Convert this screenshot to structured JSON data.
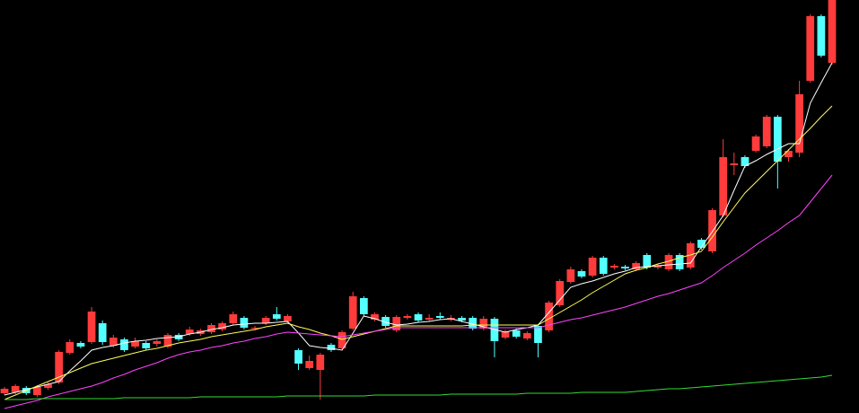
{
  "chart_data": {
    "type": "candlestick",
    "ylim": [
      0,
      46
    ],
    "up_color": "#ff3b3b",
    "down_color": "#54ffff",
    "open": [
      2.2,
      2.3,
      2.8,
      2.0,
      2.8,
      3.4,
      6.7,
      7.8,
      7.9,
      10.0,
      7.5,
      8.2,
      7.4,
      7.8,
      7.7,
      7.4,
      8.7,
      8.8,
      8.8,
      9.0,
      9.3,
      10.0,
      10.6,
      9.4,
      10.0,
      11.0,
      10.2,
      7.0,
      5.0,
      4.8,
      7.6,
      7.2,
      9.4,
      12.8,
      10.4,
      10.7,
      9.2,
      10.6,
      11.0,
      10.4,
      10.8,
      10.4,
      10.6,
      10.6,
      9.4,
      10.5,
      8.4,
      9.2,
      8.3,
      9.7,
      9.2,
      12.0,
      14.6,
      15.8,
      15.3,
      17.3,
      16.2,
      16.3,
      16.0,
      17.6,
      16.2,
      16.0,
      17.6,
      16.2,
      19.3,
      18.0,
      22.0,
      27.6,
      28.5,
      29.2,
      29.7,
      33.0,
      28.5,
      29.0,
      37.0,
      44.2,
      39.0
    ],
    "high": [
      2.9,
      3.2,
      3.0,
      3.1,
      3.4,
      7.0,
      8.2,
      8.0,
      11.8,
      10.3,
      8.7,
      8.4,
      8.4,
      8.0,
      8.2,
      8.9,
      8.9,
      9.6,
      9.4,
      10.0,
      10.2,
      11.3,
      10.8,
      9.7,
      10.8,
      11.8,
      11.0,
      7.2,
      6.4,
      6.7,
      7.8,
      9.2,
      13.5,
      13.0,
      11.2,
      10.9,
      10.9,
      11.0,
      11.2,
      11.0,
      11.2,
      10.9,
      10.8,
      10.8,
      10.8,
      10.7,
      9.3,
      9.4,
      9.1,
      9.9,
      12.5,
      14.9,
      16.3,
      16.0,
      17.5,
      17.5,
      16.6,
      16.5,
      16.9,
      17.8,
      16.6,
      17.8,
      17.8,
      19.1,
      19.5,
      22.8,
      30.5,
      29.0,
      28.7,
      31.0,
      33.2,
      33.2,
      29.4,
      37.0,
      44.4,
      44.4,
      46.0
    ],
    "low": [
      2.0,
      2.1,
      2.0,
      1.8,
      2.6,
      3.2,
      6.5,
      7.2,
      7.7,
      7.6,
      7.3,
      6.8,
      7.2,
      7.0,
      7.4,
      7.2,
      8.0,
      8.6,
      8.6,
      8.8,
      9.1,
      9.8,
      9.3,
      9.2,
      9.8,
      10.3,
      10.0,
      4.8,
      4.8,
      1.5,
      6.8,
      7.0,
      9.2,
      10.8,
      10.2,
      9.5,
      9.0,
      10.4,
      10.1,
      10.2,
      10.4,
      10.2,
      10.1,
      9.2,
      9.2,
      6.2,
      8.2,
      8.3,
      8.1,
      6.2,
      9.0,
      11.8,
      14.4,
      15.0,
      15.1,
      15.3,
      16.0,
      15.9,
      15.8,
      16.0,
      16.0,
      15.8,
      15.8,
      16.0,
      18.2,
      17.8,
      21.8,
      26.5,
      27.3,
      29.0,
      29.5,
      25.0,
      28.0,
      28.5,
      36.8,
      39.6,
      38.8
    ],
    "close": [
      2.7,
      3.0,
      2.2,
      2.9,
      3.2,
      6.8,
      7.9,
      7.4,
      11.3,
      7.9,
      8.4,
      7.0,
      8.0,
      7.2,
      8.0,
      8.7,
      8.2,
      9.3,
      9.2,
      9.8,
      10.0,
      11.0,
      9.5,
      9.5,
      10.6,
      10.5,
      10.8,
      5.5,
      5.8,
      6.5,
      7.0,
      9.0,
      13.0,
      11.0,
      11.0,
      9.7,
      10.7,
      10.8,
      10.3,
      10.6,
      10.6,
      10.6,
      10.3,
      9.4,
      10.5,
      8.0,
      9.1,
      8.5,
      8.9,
      7.8,
      12.3,
      14.7,
      16.0,
      15.2,
      17.3,
      15.5,
      16.4,
      16.1,
      16.7,
      16.2,
      16.4,
      17.6,
      16.0,
      18.9,
      18.4,
      22.6,
      28.5,
      27.8,
      27.5,
      30.8,
      33.0,
      28.0,
      29.2,
      35.5,
      44.2,
      39.8,
      46.0
    ],
    "series": [
      {
        "color": "#ffffff",
        "values": [
          2.0,
          2.3,
          2.6,
          2.9,
          3.2,
          3.5,
          4.7,
          5.8,
          7.0,
          7.3,
          7.5,
          7.8,
          8.0,
          8.1,
          8.3,
          8.4,
          8.5,
          8.8,
          9.0,
          9.3,
          9.5,
          9.8,
          9.9,
          10.0,
          10.0,
          10.1,
          10.2,
          8.9,
          7.5,
          7.3,
          7.2,
          7.0,
          8.9,
          10.8,
          10.5,
          10.1,
          9.8,
          9.9,
          10.1,
          10.2,
          10.4,
          10.5,
          10.2,
          9.9,
          9.6,
          9.3,
          9.0,
          9.3,
          9.5,
          9.8,
          11.2,
          12.6,
          14.0,
          14.4,
          14.7,
          15.1,
          15.5,
          15.8,
          16.2,
          16.3,
          16.4,
          16.5,
          16.6,
          16.7,
          18.5,
          20.2,
          22.0,
          24.8,
          27.5,
          28.1,
          28.8,
          29.4,
          30.0,
          30.0,
          34.5,
          36.8,
          39.0
        ]
      },
      {
        "color": "#ffff55",
        "values": [
          1.5,
          2.0,
          2.5,
          3.0,
          3.5,
          4.0,
          4.5,
          5.0,
          5.5,
          5.8,
          6.1,
          6.4,
          6.7,
          7.0,
          7.2,
          7.5,
          7.8,
          8.0,
          8.2,
          8.5,
          8.7,
          8.9,
          9.1,
          9.3,
          9.6,
          9.8,
          10.0,
          9.6,
          9.3,
          8.9,
          8.6,
          8.2,
          8.5,
          8.8,
          9.1,
          9.4,
          9.7,
          9.7,
          9.7,
          9.7,
          9.7,
          9.7,
          9.7,
          9.8,
          9.8,
          9.8,
          9.8,
          9.8,
          9.8,
          9.8,
          10.5,
          11.2,
          11.9,
          12.6,
          13.4,
          14.1,
          14.8,
          15.5,
          15.9,
          16.2,
          16.6,
          16.9,
          17.3,
          17.6,
          18.0,
          19.6,
          21.3,
          22.9,
          24.5,
          25.7,
          26.9,
          28.1,
          29.3,
          30.5,
          31.7,
          33.0,
          34.2
        ]
      },
      {
        "color": "#ff44ff",
        "values": [
          0.5,
          0.8,
          1.1,
          1.4,
          1.8,
          2.1,
          2.4,
          2.7,
          3.0,
          3.4,
          3.9,
          4.3,
          4.8,
          5.2,
          5.6,
          6.1,
          6.5,
          6.8,
          7.0,
          7.3,
          7.5,
          7.8,
          8.0,
          8.3,
          8.5,
          8.8,
          9.0,
          8.9,
          8.8,
          8.7,
          8.6,
          8.5,
          8.7,
          8.9,
          9.1,
          9.3,
          9.5,
          9.5,
          9.5,
          9.5,
          9.5,
          9.5,
          9.5,
          9.5,
          9.5,
          9.5,
          9.5,
          9.5,
          9.5,
          9.5,
          9.8,
          10.1,
          10.4,
          10.6,
          10.9,
          11.2,
          11.5,
          11.8,
          12.2,
          12.6,
          13.0,
          13.3,
          13.7,
          14.1,
          14.5,
          15.3,
          16.2,
          17.0,
          17.8,
          18.7,
          19.5,
          20.3,
          21.2,
          22.0,
          23.5,
          25.0,
          26.5
        ]
      },
      {
        "color": "#33dd33",
        "values": [
          1.5,
          1.5,
          1.5,
          1.6,
          1.6,
          1.6,
          1.6,
          1.6,
          1.6,
          1.6,
          1.6,
          1.7,
          1.7,
          1.7,
          1.7,
          1.7,
          1.7,
          1.7,
          1.8,
          1.8,
          1.8,
          1.8,
          1.8,
          1.8,
          1.8,
          1.8,
          1.9,
          1.9,
          1.9,
          1.9,
          1.9,
          1.9,
          1.9,
          1.9,
          2.0,
          2.0,
          2.0,
          2.0,
          2.0,
          2.0,
          2.0,
          2.1,
          2.1,
          2.1,
          2.1,
          2.1,
          2.1,
          2.1,
          2.2,
          2.2,
          2.2,
          2.2,
          2.2,
          2.3,
          2.3,
          2.3,
          2.3,
          2.3,
          2.4,
          2.5,
          2.6,
          2.7,
          2.7,
          2.8,
          2.9,
          3.0,
          3.1,
          3.2,
          3.3,
          3.4,
          3.5,
          3.6,
          3.7,
          3.8,
          3.9,
          4.0,
          4.2
        ]
      }
    ]
  }
}
